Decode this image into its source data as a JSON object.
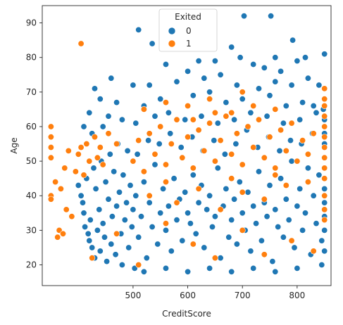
{
  "chart_data": {
    "type": "scatter",
    "title": "",
    "xlabel": "CreditScore",
    "ylabel": "Age",
    "xlim": [
      334,
      862
    ],
    "ylim": [
      14,
      95
    ],
    "xticks": [
      500,
      600,
      700,
      800
    ],
    "yticks": [
      20,
      30,
      40,
      50,
      60,
      70,
      80,
      90
    ],
    "grid": false,
    "legend": {
      "title": "Exited",
      "placement": "top-center"
    },
    "series": [
      {
        "name": "0",
        "color": "#1f77b4",
        "points": [
          [
            510,
            88
          ],
          [
            535,
            84
          ],
          [
            703,
            92
          ],
          [
            752,
            92
          ],
          [
            696,
            80
          ],
          [
            760,
            80
          ],
          [
            792,
            85
          ],
          [
            850,
            81
          ],
          [
            560,
            78
          ],
          [
            600,
            76
          ],
          [
            620,
            79
          ],
          [
            650,
            79
          ],
          [
            680,
            83
          ],
          [
            720,
            78
          ],
          [
            740,
            77
          ],
          [
            770,
            76
          ],
          [
            800,
            79
          ],
          [
            815,
            80
          ],
          [
            460,
            74
          ],
          [
            500,
            72
          ],
          [
            530,
            72
          ],
          [
            580,
            73
          ],
          [
            630,
            74
          ],
          [
            660,
            75
          ],
          [
            690,
            72
          ],
          [
            730,
            71
          ],
          [
            760,
            73
          ],
          [
            790,
            72
          ],
          [
            820,
            74
          ],
          [
            840,
            72
          ],
          [
            430,
            71
          ],
          [
            440,
            68
          ],
          [
            470,
            67
          ],
          [
            520,
            66
          ],
          [
            550,
            68
          ],
          [
            610,
            69
          ],
          [
            640,
            70
          ],
          [
            670,
            67
          ],
          [
            700,
            68
          ],
          [
            750,
            69
          ],
          [
            780,
            66
          ],
          [
            810,
            67
          ],
          [
            830,
            66
          ],
          [
            848,
            65
          ],
          [
            420,
            64
          ],
          [
            410,
            60
          ],
          [
            425,
            58
          ],
          [
            445,
            60
          ],
          [
            455,
            63
          ],
          [
            480,
            62
          ],
          [
            505,
            61
          ],
          [
            540,
            63
          ],
          [
            565,
            64
          ],
          [
            595,
            62
          ],
          [
            625,
            63
          ],
          [
            655,
            61
          ],
          [
            685,
            62
          ],
          [
            715,
            64
          ],
          [
            745,
            63
          ],
          [
            775,
            61
          ],
          [
            805,
            62
          ],
          [
            835,
            64
          ],
          [
            850,
            62
          ],
          [
            400,
            43
          ],
          [
            405,
            40
          ],
          [
            408,
            38
          ],
          [
            410,
            35
          ],
          [
            412,
            31
          ],
          [
            415,
            45
          ],
          [
            418,
            29
          ],
          [
            420,
            27
          ],
          [
            422,
            33
          ],
          [
            425,
            25
          ],
          [
            428,
            48
          ],
          [
            430,
            22
          ],
          [
            432,
            42
          ],
          [
            435,
            30
          ],
          [
            438,
            36
          ],
          [
            440,
            24
          ],
          [
            442,
            50
          ],
          [
            445,
            32
          ],
          [
            448,
            28
          ],
          [
            450,
            44
          ],
          [
            452,
            21
          ],
          [
            455,
            39
          ],
          [
            458,
            52
          ],
          [
            460,
            26
          ],
          [
            462,
            34
          ],
          [
            465,
            47
          ],
          [
            468,
            23
          ],
          [
            470,
            37
          ],
          [
            472,
            55
          ],
          [
            475,
            41
          ],
          [
            478,
            29
          ],
          [
            480,
            20
          ],
          [
            482,
            46
          ],
          [
            485,
            33
          ],
          [
            488,
            38
          ],
          [
            490,
            53
          ],
          [
            492,
            25
          ],
          [
            495,
            43
          ],
          [
            498,
            31
          ],
          [
            500,
            36
          ],
          [
            505,
            40
          ],
          [
            510,
            28
          ],
          [
            515,
            34
          ],
          [
            520,
            44
          ],
          [
            525,
            22
          ],
          [
            530,
            38
          ],
          [
            535,
            31
          ],
          [
            540,
            49
          ],
          [
            545,
            26
          ],
          [
            550,
            35
          ],
          [
            555,
            42
          ],
          [
            560,
            30
          ],
          [
            565,
            37
          ],
          [
            570,
            24
          ],
          [
            575,
            45
          ],
          [
            580,
            33
          ],
          [
            585,
            39
          ],
          [
            590,
            27
          ],
          [
            595,
            41
          ],
          [
            600,
            35
          ],
          [
            605,
            32
          ],
          [
            610,
            46
          ],
          [
            615,
            29
          ],
          [
            620,
            38
          ],
          [
            625,
            43
          ],
          [
            630,
            25
          ],
          [
            635,
            36
          ],
          [
            640,
            40
          ],
          [
            645,
            31
          ],
          [
            650,
            34
          ],
          [
            655,
            48
          ],
          [
            660,
            22
          ],
          [
            665,
            37
          ],
          [
            670,
            42
          ],
          [
            675,
            28
          ],
          [
            680,
            33
          ],
          [
            685,
            39
          ],
          [
            690,
            26
          ],
          [
            695,
            44
          ],
          [
            700,
            35
          ],
          [
            705,
            30
          ],
          [
            710,
            41
          ],
          [
            715,
            24
          ],
          [
            720,
            37
          ],
          [
            725,
            32
          ],
          [
            730,
            47
          ],
          [
            735,
            27
          ],
          [
            740,
            38
          ],
          [
            745,
            34
          ],
          [
            750,
            43
          ],
          [
            755,
            21
          ],
          [
            760,
            36
          ],
          [
            765,
            31
          ],
          [
            770,
            45
          ],
          [
            775,
            28
          ],
          [
            780,
            39
          ],
          [
            785,
            33
          ],
          [
            790,
            50
          ],
          [
            795,
            25
          ],
          [
            800,
            37
          ],
          [
            805,
            42
          ],
          [
            810,
            30
          ],
          [
            815,
            35
          ],
          [
            820,
            48
          ],
          [
            825,
            23
          ],
          [
            830,
            40
          ],
          [
            835,
            32
          ],
          [
            840,
            46
          ],
          [
            845,
            27
          ],
          [
            850,
            38
          ],
          [
            503,
            19
          ],
          [
            520,
            18
          ],
          [
            560,
            19
          ],
          [
            600,
            18
          ],
          [
            640,
            19
          ],
          [
            680,
            18
          ],
          [
            720,
            19
          ],
          [
            760,
            18
          ],
          [
            800,
            19
          ],
          [
            845,
            20
          ],
          [
            850,
            30
          ],
          [
            850,
            34
          ],
          [
            850,
            42
          ],
          [
            850,
            55
          ],
          [
            850,
            58
          ],
          [
            850,
            24
          ],
          [
            850,
            45
          ],
          [
            850,
            48
          ],
          [
            508,
            52
          ],
          [
            528,
            56
          ],
          [
            548,
            55
          ],
          [
            568,
            58
          ],
          [
            588,
            54
          ],
          [
            608,
            57
          ],
          [
            628,
            53
          ],
          [
            648,
            56
          ],
          [
            668,
            52
          ],
          [
            688,
            55
          ],
          [
            708,
            59
          ],
          [
            728,
            54
          ],
          [
            748,
            57
          ],
          [
            768,
            53
          ],
          [
            788,
            56
          ],
          [
            808,
            55
          ],
          [
            828,
            58
          ]
        ]
      },
      {
        "name": "1",
        "color": "#ff7f0e",
        "points": [
          [
            405,
            84
          ],
          [
            350,
            60
          ],
          [
            350,
            57
          ],
          [
            350,
            54
          ],
          [
            350,
            51
          ],
          [
            350,
            40
          ],
          [
            350,
            39
          ],
          [
            358,
            44
          ],
          [
            362,
            28
          ],
          [
            365,
            30
          ],
          [
            368,
            42
          ],
          [
            372,
            29
          ],
          [
            375,
            48
          ],
          [
            378,
            36
          ],
          [
            382,
            53
          ],
          [
            388,
            34
          ],
          [
            395,
            47
          ],
          [
            400,
            52
          ],
          [
            405,
            54
          ],
          [
            410,
            46
          ],
          [
            415,
            55
          ],
          [
            420,
            50
          ],
          [
            425,
            22
          ],
          [
            430,
            57
          ],
          [
            435,
            51
          ],
          [
            440,
            54
          ],
          [
            445,
            49
          ],
          [
            455,
            58
          ],
          [
            470,
            55
          ],
          [
            500,
            50
          ],
          [
            510,
            56
          ],
          [
            520,
            47
          ],
          [
            530,
            58
          ],
          [
            540,
            52
          ],
          [
            550,
            60
          ],
          [
            560,
            49
          ],
          [
            570,
            55
          ],
          [
            580,
            62
          ],
          [
            590,
            51
          ],
          [
            600,
            57
          ],
          [
            610,
            48
          ],
          [
            620,
            59
          ],
          [
            630,
            53
          ],
          [
            640,
            61
          ],
          [
            650,
            50
          ],
          [
            660,
            56
          ],
          [
            670,
            63
          ],
          [
            680,
            52
          ],
          [
            690,
            58
          ],
          [
            700,
            49
          ],
          [
            710,
            60
          ],
          [
            720,
            54
          ],
          [
            730,
            62
          ],
          [
            740,
            51
          ],
          [
            750,
            57
          ],
          [
            760,
            48
          ],
          [
            770,
            59
          ],
          [
            780,
            53
          ],
          [
            790,
            61
          ],
          [
            800,
            50
          ],
          [
            810,
            56
          ],
          [
            820,
            52
          ],
          [
            830,
            58
          ],
          [
            520,
            65
          ],
          [
            560,
            67
          ],
          [
            600,
            66
          ],
          [
            640,
            68
          ],
          [
            680,
            64
          ],
          [
            720,
            66
          ],
          [
            760,
            65
          ],
          [
            700,
            70
          ],
          [
            610,
            62
          ],
          [
            650,
            64
          ],
          [
            850,
            71
          ],
          [
            850,
            68
          ],
          [
            850,
            66
          ],
          [
            850,
            63
          ],
          [
            850,
            60
          ],
          [
            850,
            57
          ],
          [
            850,
            54
          ],
          [
            850,
            51
          ],
          [
            850,
            48
          ],
          [
            850,
            45
          ],
          [
            850,
            40
          ],
          [
            850,
            36
          ],
          [
            850,
            33
          ],
          [
            530,
            40
          ],
          [
            580,
            38
          ],
          [
            620,
            42
          ],
          [
            660,
            36
          ],
          [
            700,
            41
          ],
          [
            740,
            39
          ],
          [
            780,
            43
          ],
          [
            560,
            44
          ],
          [
            680,
            45
          ],
          [
            760,
            46
          ],
          [
            820,
            44
          ],
          [
            470,
            29
          ],
          [
            510,
            20
          ],
          [
            560,
            32
          ],
          [
            610,
            26
          ],
          [
            650,
            22
          ],
          [
            700,
            30
          ],
          [
            740,
            23
          ],
          [
            790,
            27
          ],
          [
            830,
            24
          ]
        ]
      }
    ]
  }
}
